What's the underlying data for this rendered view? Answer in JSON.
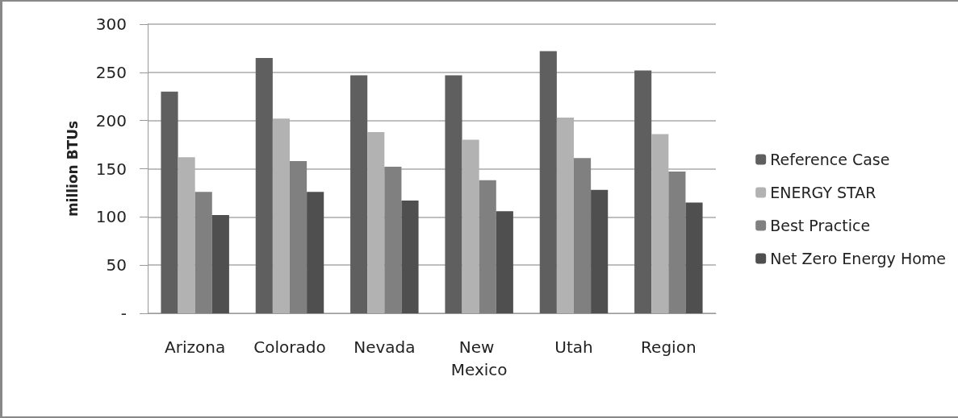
{
  "chart_data": {
    "type": "bar",
    "ylabel": "million BTUs",
    "categories": [
      "Arizona",
      "Colorado",
      "Nevada",
      "New Mexico",
      "Utah",
      "Region"
    ],
    "series": [
      {
        "name": "Reference Case",
        "color": "#5f5f5f",
        "values": [
          230,
          265,
          247,
          247,
          272,
          252
        ]
      },
      {
        "name": "ENERGY STAR",
        "color": "#b2b2b2",
        "values": [
          162,
          202,
          188,
          180,
          203,
          186
        ]
      },
      {
        "name": "Best Practice",
        "color": "#808080",
        "values": [
          126,
          158,
          152,
          138,
          161,
          147
        ]
      },
      {
        "name": "Net Zero Energy Home",
        "color": "#4f4f4f",
        "values": [
          102,
          126,
          117,
          106,
          128,
          115
        ]
      }
    ],
    "ylim": [
      0,
      300
    ],
    "yticks": [
      {
        "value": 0,
        "label": "-"
      },
      50,
      100,
      150,
      200,
      250,
      300
    ],
    "grid": "y",
    "legend": "right"
  }
}
